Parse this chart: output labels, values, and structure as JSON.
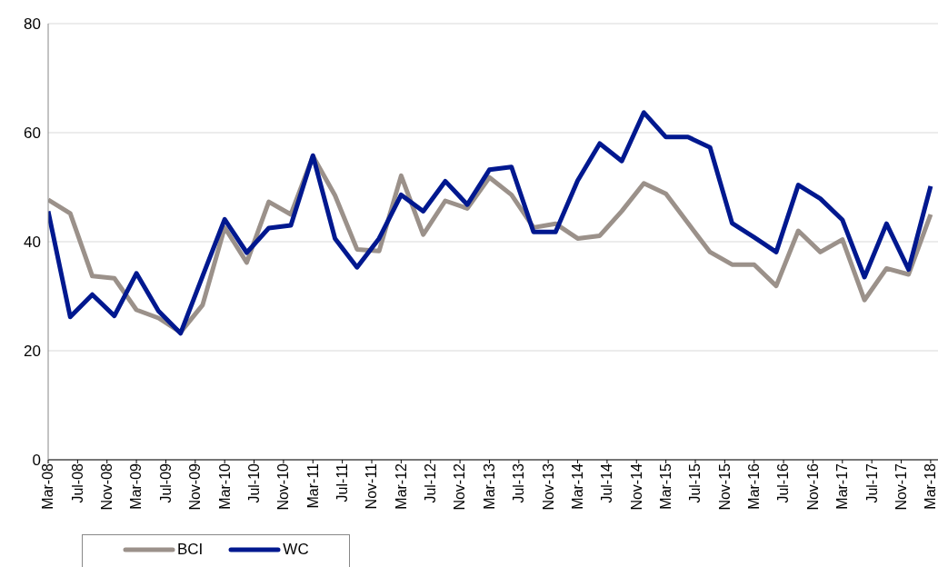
{
  "chart_data": {
    "type": "line",
    "x": [
      "2008-03",
      "2008-06",
      "2008-09",
      "2008-12",
      "2009-03",
      "2009-06",
      "2009-09",
      "2009-12",
      "2010-03",
      "2010-06",
      "2010-09",
      "2010-12",
      "2011-03",
      "2011-06",
      "2011-09",
      "2011-12",
      "2012-03",
      "2012-06",
      "2012-09",
      "2012-12",
      "2013-03",
      "2013-06",
      "2013-09",
      "2013-12",
      "2014-03",
      "2014-06",
      "2014-09",
      "2014-12",
      "2015-03",
      "2015-06",
      "2015-09",
      "2015-12",
      "2016-03",
      "2016-06",
      "2016-09",
      "2016-12",
      "2017-03",
      "2017-06",
      "2017-09",
      "2017-12",
      "2018-03"
    ],
    "series": [
      {
        "name": "BCI",
        "color": "#9b918a",
        "values": [
          47.7,
          45.2,
          33.7,
          33.3,
          27.5,
          26,
          23.4,
          28.4,
          42.6,
          36.2,
          47.3,
          45,
          55.7,
          48.5,
          38.6,
          38.3,
          52.1,
          41.3,
          47.5,
          46.1,
          51.8,
          48.6,
          42.6,
          43.3,
          40.6,
          41.1,
          45.6,
          50.7,
          48.8,
          43.4,
          38.1,
          35.8,
          35.8,
          31.9,
          42,
          38.1,
          40.4,
          29.3,
          35.1,
          34,
          45
        ]
      },
      {
        "name": "WC",
        "color": "#00188f",
        "values": [
          45.6,
          26.2,
          30.3,
          26.4,
          34.2,
          27.3,
          23.2,
          33.7,
          44.1,
          38,
          42.5,
          43,
          55.8,
          40.6,
          35.3,
          40.6,
          48.6,
          45.6,
          51.1,
          46.8,
          53.2,
          53.7,
          41.8,
          41.8,
          51.2,
          58,
          54.8,
          63.7,
          59.2,
          59.2,
          57.3,
          43.4,
          40.8,
          38.1,
          50.4,
          47.9,
          44,
          33.5,
          43.3,
          34.9,
          50.2
        ]
      }
    ],
    "xlim": [
      "2008-03",
      "2018-04"
    ],
    "xticks": [
      {
        "value": "2008-03",
        "label": "Mar-08"
      },
      {
        "value": "2008-07",
        "label": "Jul-08"
      },
      {
        "value": "2008-11",
        "label": "Nov-08"
      },
      {
        "value": "2009-03",
        "label": "Mar-09"
      },
      {
        "value": "2009-07",
        "label": "Jul-09"
      },
      {
        "value": "2009-11",
        "label": "Nov-09"
      },
      {
        "value": "2010-03",
        "label": "Mar-10"
      },
      {
        "value": "2010-07",
        "label": "Jul-10"
      },
      {
        "value": "2010-11",
        "label": "Nov-10"
      },
      {
        "value": "2011-03",
        "label": "Mar-11"
      },
      {
        "value": "2011-07",
        "label": "Jul-11"
      },
      {
        "value": "2011-11",
        "label": "Nov-11"
      },
      {
        "value": "2012-03",
        "label": "Mar-12"
      },
      {
        "value": "2012-07",
        "label": "Jul-12"
      },
      {
        "value": "2012-11",
        "label": "Nov-12"
      },
      {
        "value": "2013-03",
        "label": "Mar-13"
      },
      {
        "value": "2013-07",
        "label": "Jul-13"
      },
      {
        "value": "2013-11",
        "label": "Nov-13"
      },
      {
        "value": "2014-03",
        "label": "Mar-14"
      },
      {
        "value": "2014-07",
        "label": "Jul-14"
      },
      {
        "value": "2014-11",
        "label": "Nov-14"
      },
      {
        "value": "2015-03",
        "label": "Mar-15"
      },
      {
        "value": "2015-07",
        "label": "Jul-15"
      },
      {
        "value": "2015-11",
        "label": "Nov-15"
      },
      {
        "value": "2016-03",
        "label": "Mar-16"
      },
      {
        "value": "2016-07",
        "label": "Jul-16"
      },
      {
        "value": "2016-11",
        "label": "Nov-16"
      },
      {
        "value": "2017-03",
        "label": "Mar-17"
      },
      {
        "value": "2017-07",
        "label": "Jul-17"
      },
      {
        "value": "2017-11",
        "label": "Nov-17"
      },
      {
        "value": "2018-03",
        "label": "Mar-18"
      }
    ],
    "ylim": [
      0,
      80
    ],
    "yticks": [
      0,
      20,
      40,
      60,
      80
    ],
    "grid": "y",
    "legend": "bottom",
    "marker": "none",
    "line_style": "solid"
  }
}
